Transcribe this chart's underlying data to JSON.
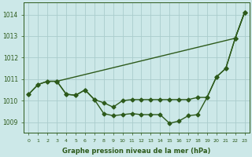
{
  "x": [
    0,
    1,
    2,
    3,
    4,
    5,
    6,
    7,
    8,
    9,
    10,
    11,
    12,
    13,
    14,
    15,
    16,
    17,
    18,
    19,
    20,
    21,
    22,
    23
  ],
  "series_top": [
    null,
    null,
    null,
    1010.9,
    null,
    null,
    null,
    null,
    null,
    null,
    null,
    null,
    null,
    null,
    null,
    null,
    null,
    null,
    null,
    null,
    null,
    null,
    1012.9,
    1014.1
  ],
  "series_mid": [
    1010.3,
    1010.75,
    1010.9,
    1010.9,
    1010.3,
    1010.25,
    1010.5,
    1010.05,
    1009.9,
    1009.7,
    1010.0,
    1010.05,
    1010.05,
    1010.05,
    1010.05,
    1010.05,
    1010.05,
    1010.05,
    1010.15,
    1010.15,
    1011.1,
    1011.5,
    1012.9,
    1014.1
  ],
  "series_low": [
    1010.3,
    1010.75,
    1010.9,
    1010.9,
    1010.3,
    1010.25,
    1010.5,
    1010.05,
    1009.4,
    1009.3,
    1009.35,
    1009.4,
    1009.35,
    1009.35,
    1009.35,
    1008.95,
    1009.05,
    1009.3,
    1009.35,
    1010.15,
    1011.1,
    1011.5,
    1012.9,
    1014.1
  ],
  "line_color": "#2d5a1b",
  "bg_color": "#cce8e8",
  "grid_color": "#aacccc",
  "xlabel": "Graphe pression niveau de la mer (hPa)",
  "ylim_min": 1008.5,
  "ylim_max": 1014.55,
  "yticks": [
    1009,
    1010,
    1011,
    1012,
    1013,
    1014
  ],
  "xticks": [
    0,
    1,
    2,
    3,
    4,
    5,
    6,
    7,
    8,
    9,
    10,
    11,
    12,
    13,
    14,
    15,
    16,
    17,
    18,
    19,
    20,
    21,
    22,
    23
  ],
  "markersize": 2.5,
  "linewidth": 1.0
}
